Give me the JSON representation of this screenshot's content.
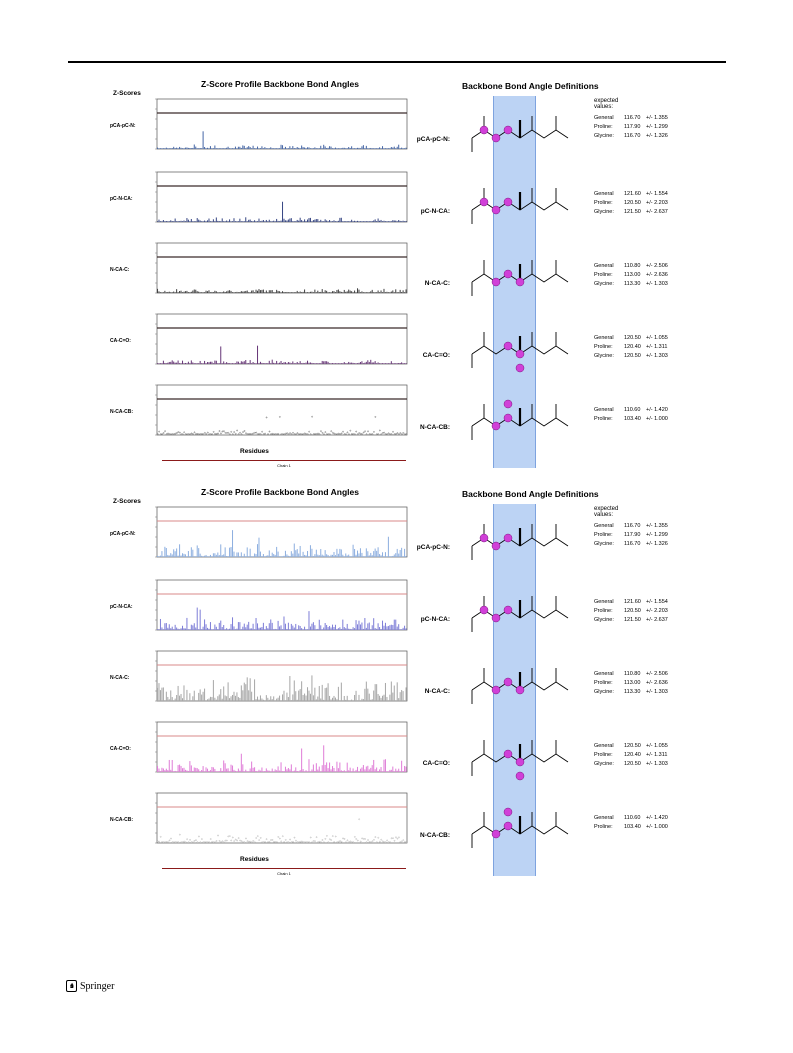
{
  "footer": {
    "publisher": "Springer"
  },
  "panels": [
    {
      "profile_title": "Z-Score Profile Backbone Bond Angles",
      "zscores_label": "Z-Scores",
      "residues_label": "Residues",
      "chain_label": "Chain 1",
      "definitions_title": "Backbone Bond Angle Definitions",
      "expected_label": "expected values:",
      "rows": [
        {
          "label": "pCA-pC-N:",
          "def_label": "pCA-pC-N:",
          "color": "#4a6aa8",
          "values": [
            {
              "name": "General",
              "mean": "116.70",
              "sd": "+/- 1.355"
            },
            {
              "name": "Proline:",
              "mean": "117.90",
              "sd": "+/- 1.299"
            },
            {
              "name": "Glycine:",
              "mean": "116.70",
              "sd": "+/- 1.326"
            }
          ]
        },
        {
          "label": "pC-N-CA:",
          "def_label": "pC-N-CA:",
          "color": "#3b4a86",
          "values": [
            {
              "name": "General",
              "mean": "121.60",
              "sd": "+/- 1.554"
            },
            {
              "name": "Proline:",
              "mean": "120.50",
              "sd": "+/- 2.203"
            },
            {
              "name": "Glycine:",
              "mean": "121.50",
              "sd": "+/- 2.637"
            }
          ]
        },
        {
          "label": "N-CA-C:",
          "def_label": "N-CA-C:",
          "color": "#444444",
          "values": [
            {
              "name": "General",
              "mean": "110.80",
              "sd": "+/- 2.506"
            },
            {
              "name": "Proline:",
              "mean": "113.00",
              "sd": "+/- 2.636"
            },
            {
              "name": "Glycine:",
              "mean": "113.30",
              "sd": "+/- 1.303"
            }
          ]
        },
        {
          "label": "CA-C=O:",
          "def_label": "CA-C=O:",
          "color": "#6a3a7a",
          "values": [
            {
              "name": "General",
              "mean": "120.50",
              "sd": "+/- 1.055"
            },
            {
              "name": "Proline:",
              "mean": "120.40",
              "sd": "+/- 1.311"
            },
            {
              "name": "Glycine:",
              "mean": "120.50",
              "sd": "+/- 1.303"
            }
          ]
        },
        {
          "label": "N-CA-CB:",
          "def_label": "N-CA-CB:",
          "color": "#555555",
          "values": [
            {
              "name": "General",
              "mean": "110.60",
              "sd": "+/- 1.420"
            },
            {
              "name": "Proline:",
              "mean": "103.40",
              "sd": "+/- 1.000"
            }
          ]
        }
      ]
    },
    {
      "profile_title": "Z-Score Profile Backbone Bond Angles",
      "zscores_label": "Z-Scores",
      "residues_label": "Residues",
      "chain_label": "Chain 1",
      "definitions_title": "Backbone Bond Angle Definitions",
      "expected_label": "expected values:",
      "rows": [
        {
          "label": "pCA-pC-N:",
          "def_label": "pCA-pC-N:",
          "color": "#8fb0e0",
          "values": [
            {
              "name": "General",
              "mean": "116.70",
              "sd": "+/- 1.355"
            },
            {
              "name": "Proline:",
              "mean": "117.90",
              "sd": "+/- 1.299"
            },
            {
              "name": "Glycine:",
              "mean": "116.70",
              "sd": "+/- 1.326"
            }
          ]
        },
        {
          "label": "pC-N-CA:",
          "def_label": "pC-N-CA:",
          "color": "#8080d8",
          "values": [
            {
              "name": "General",
              "mean": "121.60",
              "sd": "+/- 1.554"
            },
            {
              "name": "Proline:",
              "mean": "120.50",
              "sd": "+/- 2.203"
            },
            {
              "name": "Glycine:",
              "mean": "121.50",
              "sd": "+/- 2.637"
            }
          ]
        },
        {
          "label": "N-CA-C:",
          "def_label": "N-CA-C:",
          "color": "#a8a8a8",
          "values": [
            {
              "name": "General",
              "mean": "110.80",
              "sd": "+/- 2.506"
            },
            {
              "name": "Proline:",
              "mean": "113.00",
              "sd": "+/- 2.636"
            },
            {
              "name": "Glycine:",
              "mean": "113.30",
              "sd": "+/- 1.303"
            }
          ]
        },
        {
          "label": "CA-C=O:",
          "def_label": "CA-C=O:",
          "color": "#e080d8",
          "values": [
            {
              "name": "General",
              "mean": "120.50",
              "sd": "+/- 1.055"
            },
            {
              "name": "Proline:",
              "mean": "120.40",
              "sd": "+/- 1.311"
            },
            {
              "name": "Glycine:",
              "mean": "120.50",
              "sd": "+/- 1.303"
            }
          ]
        },
        {
          "label": "N-CA-CB:",
          "def_label": "N-CA-CB:",
          "color": "#aaaaaa",
          "values": [
            {
              "name": "General",
              "mean": "110.60",
              "sd": "+/- 1.420"
            },
            {
              "name": "Proline:",
              "mean": "103.40",
              "sd": "+/- 1.000"
            }
          ]
        }
      ]
    }
  ]
}
